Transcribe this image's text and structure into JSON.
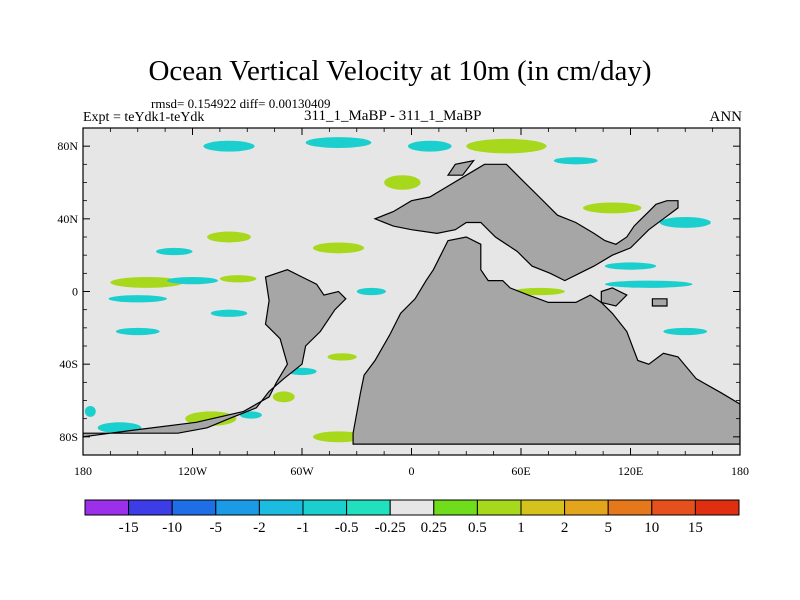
{
  "title": "Ocean Vertical Velocity at 10m (in cm/day)",
  "stats": "rmsd= 0.154922  diff= 0.00130409",
  "expt": "Expt = teYdk1-teYdk",
  "cases": "311_1_MaBP - 311_1_MaBP",
  "season": "ANN",
  "chart_data": {
    "type": "heatmap",
    "title": "Ocean Vertical Velocity at 10m (in cm/day)",
    "units": "cm/day",
    "xlim": [
      -180,
      180
    ],
    "ylim": [
      -90,
      90
    ],
    "x_ticks": [
      {
        "value": -180,
        "label": "180"
      },
      {
        "value": -120,
        "label": "120W"
      },
      {
        "value": -60,
        "label": "60W"
      },
      {
        "value": 0,
        "label": "0"
      },
      {
        "value": 60,
        "label": "60E"
      },
      {
        "value": 120,
        "label": "120E"
      },
      {
        "value": 180,
        "label": "180"
      }
    ],
    "y_ticks": [
      {
        "value": 80,
        "label": "80N"
      },
      {
        "value": 40,
        "label": "40N"
      },
      {
        "value": 0,
        "label": "0"
      },
      {
        "value": -40,
        "label": "40S"
      },
      {
        "value": -80,
        "label": "80S"
      }
    ],
    "colorbar_labels": [
      "-15",
      "-10",
      "-5",
      "-2",
      "-1",
      "-0.5",
      "-0.25",
      "0.25",
      "0.5",
      "1",
      "2",
      "5",
      "10",
      "15"
    ],
    "colorbar_colors": [
      "#9b2fea",
      "#3d3de8",
      "#1e6ee6",
      "#1b9be6",
      "#1bbce0",
      "#1ccfcf",
      "#21e0c0",
      "#e6e6e6",
      "#6fdc1c",
      "#a8d81c",
      "#d6c21c",
      "#e3a51c",
      "#e6781c",
      "#e5501c",
      "#e02e10"
    ],
    "land_color": "#a6a6a6",
    "background_color": "#e6e6e6",
    "land_polygons": [
      [
        [
          -180,
          -78
        ],
        [
          -128,
          -78
        ],
        [
          -112,
          -75
        ],
        [
          -100,
          -70
        ],
        [
          -85,
          -64
        ],
        [
          -78,
          -55
        ],
        [
          -70,
          -48
        ],
        [
          -60,
          -40
        ],
        [
          -58,
          -30
        ],
        [
          -50,
          -22
        ],
        [
          -42,
          -10
        ],
        [
          -36,
          -4
        ],
        [
          -40,
          0
        ],
        [
          -48,
          -2
        ],
        [
          -52,
          4
        ],
        [
          -60,
          8
        ],
        [
          -68,
          12
        ],
        [
          -80,
          8
        ],
        [
          -78,
          -5
        ],
        [
          -80,
          -18
        ],
        [
          -72,
          -26
        ],
        [
          -68,
          -40
        ],
        [
          -74,
          -50
        ],
        [
          -78,
          -58
        ],
        [
          -92,
          -66
        ],
        [
          -118,
          -72
        ],
        [
          -150,
          -76
        ],
        [
          -180,
          -80
        ]
      ],
      [
        [
          -32,
          -78
        ],
        [
          -28,
          -56
        ],
        [
          -26,
          -46
        ],
        [
          -20,
          -38
        ],
        [
          -12,
          -24
        ],
        [
          -6,
          -12
        ],
        [
          2,
          -4
        ],
        [
          8,
          6
        ],
        [
          12,
          12
        ],
        [
          16,
          20
        ],
        [
          20,
          28
        ],
        [
          30,
          30
        ],
        [
          38,
          26
        ],
        [
          38,
          12
        ],
        [
          42,
          6
        ],
        [
          50,
          6
        ],
        [
          54,
          2
        ],
        [
          64,
          -2
        ],
        [
          75,
          -6
        ],
        [
          90,
          -6
        ],
        [
          98,
          -2
        ],
        [
          104,
          -6
        ],
        [
          110,
          -12
        ],
        [
          118,
          -22
        ],
        [
          124,
          -38
        ],
        [
          130,
          -40
        ],
        [
          138,
          -34
        ],
        [
          146,
          -36
        ],
        [
          156,
          -48
        ],
        [
          170,
          -56
        ],
        [
          180,
          -62
        ],
        [
          180,
          -84
        ],
        [
          -32,
          -84
        ]
      ],
      [
        [
          -20,
          40
        ],
        [
          -10,
          44
        ],
        [
          0,
          50
        ],
        [
          10,
          52
        ],
        [
          20,
          58
        ],
        [
          30,
          64
        ],
        [
          40,
          70
        ],
        [
          52,
          70
        ],
        [
          60,
          62
        ],
        [
          70,
          52
        ],
        [
          80,
          42
        ],
        [
          90,
          38
        ],
        [
          100,
          32
        ],
        [
          106,
          28
        ],
        [
          112,
          26
        ],
        [
          118,
          30
        ],
        [
          122,
          36
        ],
        [
          126,
          40
        ],
        [
          130,
          44
        ],
        [
          134,
          48
        ],
        [
          140,
          50
        ],
        [
          146,
          50
        ],
        [
          146,
          46
        ],
        [
          138,
          40
        ],
        [
          130,
          34
        ],
        [
          120,
          24
        ],
        [
          110,
          20
        ],
        [
          100,
          14
        ],
        [
          92,
          10
        ],
        [
          84,
          6
        ],
        [
          76,
          10
        ],
        [
          66,
          14
        ],
        [
          58,
          22
        ],
        [
          46,
          30
        ],
        [
          38,
          38
        ],
        [
          30,
          38
        ],
        [
          24,
          34
        ],
        [
          14,
          32
        ],
        [
          0,
          34
        ],
        [
          -10,
          36
        ]
      ],
      [
        [
          20,
          64
        ],
        [
          24,
          70
        ],
        [
          34,
          72
        ],
        [
          28,
          64
        ]
      ],
      [
        [
          104,
          0
        ],
        [
          110,
          2
        ],
        [
          118,
          -2
        ],
        [
          112,
          -8
        ],
        [
          104,
          -6
        ]
      ],
      [
        [
          132,
          -4
        ],
        [
          140,
          -4
        ],
        [
          140,
          -8
        ],
        [
          132,
          -8
        ]
      ]
    ],
    "contours": [
      {
        "lon": -160,
        "lat": -75,
        "rx": 12,
        "ry": 3,
        "class": "-0.5"
      },
      {
        "lon": -110,
        "lat": -70,
        "rx": 14,
        "ry": 4,
        "class": "0.5"
      },
      {
        "lon": -88,
        "lat": -68,
        "rx": 6,
        "ry": 2,
        "class": "-0.5"
      },
      {
        "lon": -40,
        "lat": -80,
        "rx": 14,
        "ry": 3,
        "class": "0.5"
      },
      {
        "lon": -38,
        "lat": -36,
        "rx": 8,
        "ry": 2,
        "class": "0.5"
      },
      {
        "lon": -70,
        "lat": -58,
        "rx": 6,
        "ry": 3,
        "class": "0.5"
      },
      {
        "lon": -145,
        "lat": 5,
        "rx": 20,
        "ry": 3,
        "class": "0.5"
      },
      {
        "lon": -120,
        "lat": 6,
        "rx": 14,
        "ry": 2,
        "class": "-0.5"
      },
      {
        "lon": -95,
        "lat": 7,
        "rx": 10,
        "ry": 2,
        "class": "0.5"
      },
      {
        "lon": -150,
        "lat": -4,
        "rx": 16,
        "ry": 2,
        "class": "-0.5"
      },
      {
        "lon": -100,
        "lat": -12,
        "rx": 10,
        "ry": 2,
        "class": "-0.5"
      },
      {
        "lon": -150,
        "lat": -22,
        "rx": 12,
        "ry": 2,
        "class": "-0.5"
      },
      {
        "lon": -130,
        "lat": 22,
        "rx": 10,
        "ry": 2,
        "class": "-0.5"
      },
      {
        "lon": -100,
        "lat": 30,
        "rx": 12,
        "ry": 3,
        "class": "0.5"
      },
      {
        "lon": -100,
        "lat": 80,
        "rx": 14,
        "ry": 3,
        "class": "-0.5"
      },
      {
        "lon": -40,
        "lat": 82,
        "rx": 18,
        "ry": 3,
        "class": "-0.5"
      },
      {
        "lon": 10,
        "lat": 80,
        "rx": 12,
        "ry": 3,
        "class": "-0.5"
      },
      {
        "lon": 52,
        "lat": 80,
        "rx": 22,
        "ry": 4,
        "class": "0.5"
      },
      {
        "lon": 90,
        "lat": 72,
        "rx": 12,
        "ry": 2,
        "class": "-0.5"
      },
      {
        "lon": -5,
        "lat": 60,
        "rx": 10,
        "ry": 4,
        "class": "0.5"
      },
      {
        "lon": 12,
        "lat": 42,
        "rx": 6,
        "ry": 3,
        "class": "-0.5"
      },
      {
        "lon": 110,
        "lat": 46,
        "rx": 16,
        "ry": 3,
        "class": "0.5"
      },
      {
        "lon": 150,
        "lat": 38,
        "rx": 14,
        "ry": 3,
        "class": "-0.5"
      },
      {
        "lon": 130,
        "lat": 4,
        "rx": 24,
        "ry": 2,
        "class": "-0.5"
      },
      {
        "lon": 70,
        "lat": 0,
        "rx": 14,
        "ry": 2,
        "class": "0.5"
      },
      {
        "lon": 120,
        "lat": 14,
        "rx": 14,
        "ry": 2,
        "class": "-0.5"
      },
      {
        "lon": 150,
        "lat": -22,
        "rx": 12,
        "ry": 2,
        "class": "-0.5"
      },
      {
        "lon": 100,
        "lat": -28,
        "rx": 10,
        "ry": 2,
        "class": "-0.5"
      },
      {
        "lon": -40,
        "lat": 24,
        "rx": 14,
        "ry": 3,
        "class": "0.5"
      },
      {
        "lon": -22,
        "lat": 0,
        "rx": 8,
        "ry": 2,
        "class": "-0.5"
      },
      {
        "lon": -60,
        "lat": -44,
        "rx": 8,
        "ry": 2,
        "class": "-0.5"
      },
      {
        "lon": 178,
        "lat": -72,
        "rx": 3,
        "ry": 5,
        "class": "0.5"
      },
      {
        "lon": -176,
        "lat": -66,
        "rx": 3,
        "ry": 3,
        "class": "-0.5"
      }
    ]
  }
}
